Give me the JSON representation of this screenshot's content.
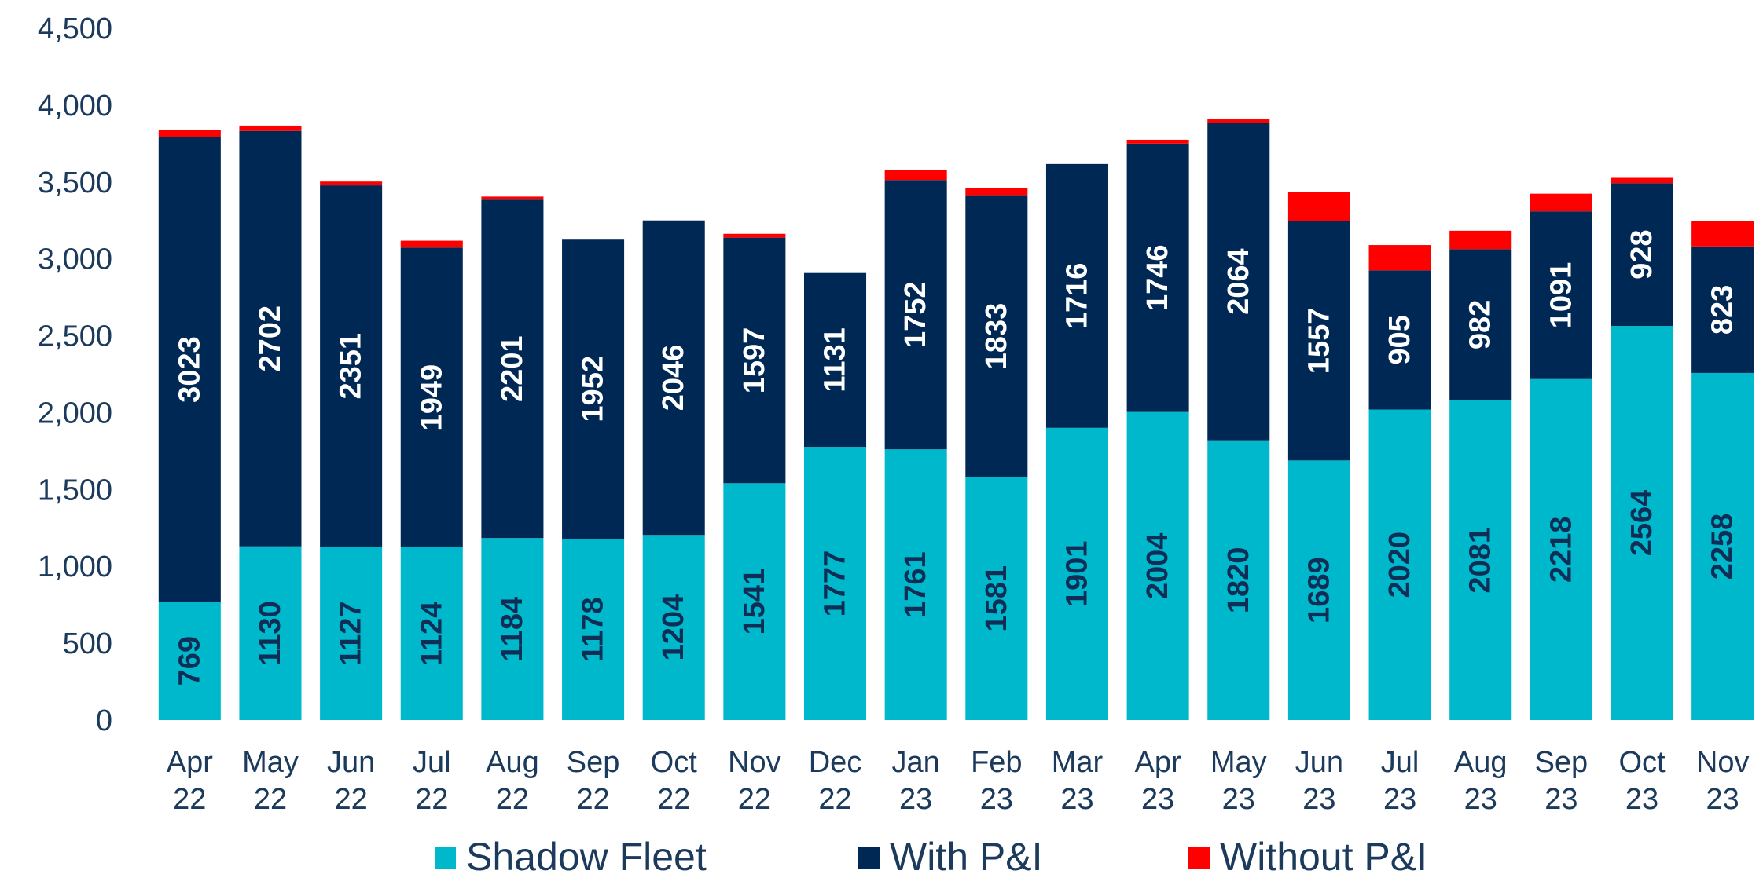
{
  "chart_data": {
    "type": "bar",
    "stacked": true,
    "title": "",
    "xlabel": "",
    "ylabel": "",
    "ylim": [
      0,
      4500
    ],
    "ytick_values": [
      0,
      500,
      1000,
      1500,
      2000,
      2500,
      3000,
      3500,
      4000,
      4500
    ],
    "ytick_labels": [
      "0",
      "500",
      "1,000",
      "1,500",
      "2,000",
      "2,500",
      "3,000",
      "3,500",
      "4,000",
      "4,500"
    ],
    "grid": false,
    "legend_position": "bottom",
    "categories": [
      [
        "Apr",
        "22"
      ],
      [
        "May",
        "22"
      ],
      [
        "Jun",
        "22"
      ],
      [
        "Jul",
        "22"
      ],
      [
        "Aug",
        "22"
      ],
      [
        "Sep",
        "22"
      ],
      [
        "Oct",
        "22"
      ],
      [
        "Nov",
        "22"
      ],
      [
        "Dec",
        "22"
      ],
      [
        "Jan",
        "23"
      ],
      [
        "Feb",
        "23"
      ],
      [
        "Mar",
        "23"
      ],
      [
        "Apr",
        "23"
      ],
      [
        "May",
        "23"
      ],
      [
        "Jun",
        "23"
      ],
      [
        "Jul",
        "23"
      ],
      [
        "Aug",
        "23"
      ],
      [
        "Sep",
        "23"
      ],
      [
        "Oct",
        "23"
      ],
      [
        "Nov",
        "23"
      ]
    ],
    "series": [
      {
        "name": "Shadow Fleet",
        "color": "#00b8cc",
        "label_color": "#0f2d55",
        "show_labels": true,
        "values": [
          769,
          1130,
          1127,
          1124,
          1184,
          1178,
          1204,
          1541,
          1777,
          1761,
          1581,
          1901,
          2004,
          1820,
          1689,
          2020,
          2081,
          2218,
          2564,
          2258
        ]
      },
      {
        "name": "With P&I",
        "color": "#002855",
        "label_color": "#ffffff",
        "show_labels": true,
        "values": [
          3023,
          2702,
          2351,
          1949,
          2201,
          1952,
          2046,
          1597,
          1131,
          1752,
          1833,
          1716,
          1746,
          2064,
          1557,
          905,
          982,
          1091,
          928,
          823
        ]
      },
      {
        "name": "Without P&I",
        "color": "#ff0000",
        "label_color": "#ffffff",
        "show_labels": false,
        "values": [
          45,
          35,
          25,
          45,
          20,
          0,
          0,
          25,
          0,
          65,
          45,
          0,
          25,
          25,
          190,
          165,
          120,
          115,
          35,
          165
        ]
      }
    ]
  }
}
